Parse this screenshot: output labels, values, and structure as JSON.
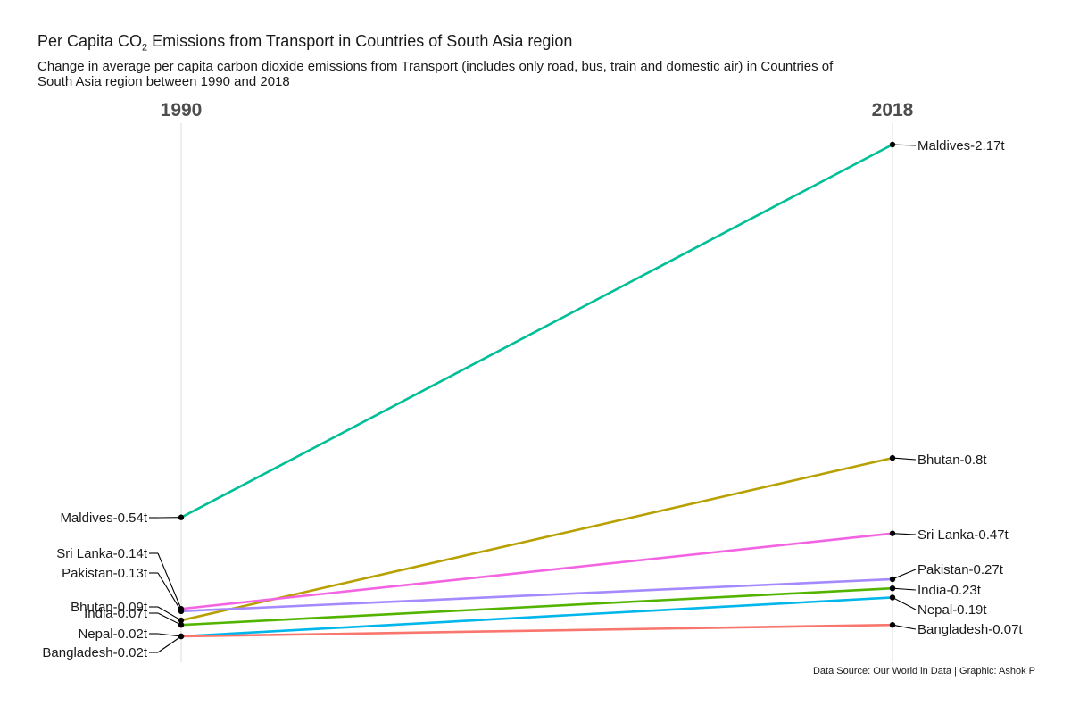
{
  "title": {
    "prefix": "Per Capita CO",
    "subscript": "2",
    "suffix": " Emissions from Transport in Countries of South Asia region"
  },
  "subtitle": "Change in average per capita carbon dioxide emissions from Transport (includes only road, bus, train and domestic air) in Countries of South Asia region between 1990 and 2018",
  "caption": "Data Source: Our World in Data | Graphic: Ashok P",
  "chart_data": {
    "type": "line",
    "x": [
      "1990",
      "2018"
    ],
    "ylabel": "",
    "xlabel": "",
    "ylim": [
      0,
      2.2
    ],
    "grid": true,
    "series": [
      {
        "name": "Maldives",
        "values": [
          0.54,
          2.17
        ],
        "color": "#00BF97",
        "labels": [
          "Maldives-0.54t",
          "Maldives-2.17t"
        ]
      },
      {
        "name": "Bhutan",
        "values": [
          0.09,
          0.8
        ],
        "color": "#B8A000",
        "labels": [
          "Bhutan-0.09t",
          "Bhutan-0.8t"
        ]
      },
      {
        "name": "Sri Lanka",
        "values": [
          0.14,
          0.47
        ],
        "color": "#F364E2",
        "labels": [
          "Sri Lanka-0.14t",
          "Sri Lanka-0.47t"
        ]
      },
      {
        "name": "Pakistan",
        "values": [
          0.13,
          0.27
        ],
        "color": "#A58AFF",
        "labels": [
          "Pakistan-0.13t",
          "Pakistan-0.27t"
        ]
      },
      {
        "name": "India",
        "values": [
          0.07,
          0.23
        ],
        "color": "#53B400",
        "labels": [
          "India-0.07t",
          "India-0.23t"
        ]
      },
      {
        "name": "Nepal",
        "values": [
          0.02,
          0.19
        ],
        "color": "#00B6EB",
        "labels": [
          "Nepal-0.02t",
          "Nepal-0.19t"
        ]
      },
      {
        "name": "Bangladesh",
        "values": [
          0.02,
          0.07
        ],
        "color": "#F8766D",
        "labels": [
          "Bangladesh-0.02t",
          "Bangladesh-0.07t"
        ]
      }
    ]
  }
}
